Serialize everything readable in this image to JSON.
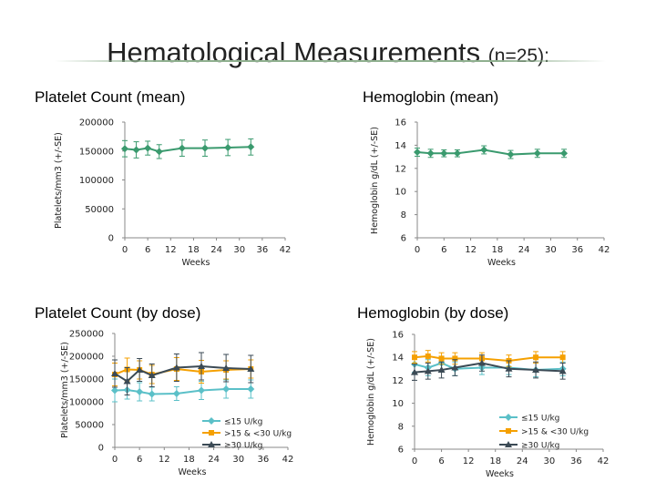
{
  "page": {
    "title": "Hematological Measurements",
    "title_suffix": "(n=25):"
  },
  "chart_data": [
    {
      "type": "line",
      "title": "Platelet Count (mean)",
      "xlabel": "Weeks",
      "ylabel": "Platelets/mm3 (+/-SE)",
      "xlim": [
        0,
        42
      ],
      "ylim": [
        0,
        200000
      ],
      "xticks": [
        0,
        6,
        12,
        18,
        24,
        30,
        36,
        42
      ],
      "yticks": [
        0,
        50000,
        100000,
        150000,
        200000
      ],
      "ytick_labels": [
        "0",
        "50000",
        "100000",
        "150000",
        "200000"
      ],
      "series": [
        {
          "name": "Mean",
          "color": "#3a9a6e",
          "marker": "diamond",
          "x": [
            0,
            3,
            6,
            9,
            15,
            21,
            27,
            33
          ],
          "values": [
            154000,
            152000,
            155000,
            149000,
            155000,
            155000,
            156000,
            157000
          ],
          "errors": [
            14000,
            14000,
            12000,
            12000,
            14000,
            14000,
            14000,
            14000
          ]
        }
      ]
    },
    {
      "type": "line",
      "title": "Hemoglobin (mean)",
      "xlabel": "Weeks",
      "ylabel": "Hemoglobin g/dL (+/-SE)",
      "xlim": [
        0,
        42
      ],
      "ylim": [
        6,
        16
      ],
      "xticks": [
        0,
        6,
        12,
        18,
        24,
        30,
        36,
        42
      ],
      "yticks": [
        6,
        8,
        10,
        12,
        14,
        16
      ],
      "ytick_labels": [
        "6",
        "8",
        "10",
        "12",
        "14",
        "16"
      ],
      "series": [
        {
          "name": "Mean",
          "color": "#3a9a6e",
          "marker": "diamond",
          "x": [
            0,
            3,
            6,
            9,
            15,
            21,
            27,
            33
          ],
          "values": [
            13.4,
            13.3,
            13.3,
            13.3,
            13.6,
            13.2,
            13.3,
            13.3
          ],
          "errors": [
            0.35,
            0.35,
            0.3,
            0.3,
            0.35,
            0.35,
            0.35,
            0.35
          ]
        }
      ]
    },
    {
      "type": "line",
      "title": "Platelet Count (by dose)",
      "xlabel": "Weeks",
      "ylabel": "Platelets/mm3 (+/-SE)",
      "xlim": [
        0,
        42
      ],
      "ylim": [
        0,
        250000
      ],
      "xticks": [
        0,
        6,
        12,
        18,
        24,
        30,
        36,
        42
      ],
      "yticks": [
        0,
        50000,
        100000,
        150000,
        200000,
        250000
      ],
      "ytick_labels": [
        "0",
        "50000",
        "100000",
        "150000",
        "200000",
        "250000"
      ],
      "legend": "bottom-right",
      "series": [
        {
          "name": "≤15 U/kg",
          "color": "#5bc0c8",
          "marker": "diamond",
          "x": [
            0,
            3,
            6,
            9,
            15,
            21,
            27,
            33
          ],
          "values": [
            125000,
            126000,
            122000,
            117000,
            118000,
            125000,
            128000,
            128000
          ],
          "errors": [
            25000,
            20000,
            20000,
            15000,
            15000,
            20000,
            20000,
            20000
          ]
        },
        {
          "name": ">15 & <30 U/kg",
          "color": "#f5a000",
          "marker": "square",
          "x": [
            0,
            3,
            6,
            9,
            15,
            21,
            27,
            33
          ],
          "values": [
            160000,
            171000,
            170000,
            160000,
            172000,
            166000,
            170000,
            172000
          ],
          "errors": [
            25000,
            25000,
            20000,
            20000,
            25000,
            25000,
            20000,
            20000
          ]
        },
        {
          "name": "≥30 U/kg",
          "color": "#3b4a55",
          "marker": "triangle",
          "x": [
            0,
            3,
            6,
            9,
            15,
            21,
            27,
            33
          ],
          "values": [
            162000,
            145000,
            170000,
            158000,
            175000,
            178000,
            174000,
            172000
          ],
          "errors": [
            30000,
            30000,
            25000,
            25000,
            30000,
            30000,
            30000,
            30000
          ]
        }
      ]
    },
    {
      "type": "line",
      "title": "Hemoglobin (by dose)",
      "xlabel": "Weeks",
      "ylabel": "Hemoglobin g/dL (+/-SE)",
      "xlim": [
        0,
        42
      ],
      "ylim": [
        6,
        16
      ],
      "xticks": [
        0,
        6,
        12,
        18,
        24,
        30,
        36,
        42
      ],
      "yticks": [
        6,
        8,
        10,
        12,
        14,
        16
      ],
      "ytick_labels": [
        "6",
        "8",
        "10",
        "12",
        "14",
        "16"
      ],
      "legend": "bottom-right",
      "series": [
        {
          "name": "≤15 U/kg",
          "color": "#5bc0c8",
          "marker": "diamond",
          "x": [
            0,
            3,
            6,
            9,
            15,
            21,
            27,
            33
          ],
          "values": [
            13.4,
            13.1,
            13.5,
            13.0,
            13.1,
            13.1,
            12.9,
            13.0
          ],
          "errors": [
            0.7,
            0.7,
            0.6,
            0.6,
            0.6,
            0.6,
            0.6,
            0.6
          ]
        },
        {
          "name": ">15 & <30 U/kg",
          "color": "#f5a000",
          "marker": "square",
          "x": [
            0,
            3,
            6,
            9,
            15,
            21,
            27,
            33
          ],
          "values": [
            14.0,
            14.1,
            13.9,
            13.9,
            13.9,
            13.7,
            14.0,
            14.0
          ],
          "errors": [
            0.5,
            0.5,
            0.5,
            0.5,
            0.5,
            0.5,
            0.5,
            0.5
          ]
        },
        {
          "name": "≥30 U/kg",
          "color": "#3b4a55",
          "marker": "triangle",
          "x": [
            0,
            3,
            6,
            9,
            15,
            21,
            27,
            33
          ],
          "values": [
            12.7,
            12.8,
            12.9,
            13.1,
            13.5,
            13.0,
            12.9,
            12.8
          ],
          "errors": [
            0.7,
            0.7,
            0.7,
            0.7,
            0.7,
            0.7,
            0.7,
            0.7
          ]
        }
      ]
    }
  ]
}
